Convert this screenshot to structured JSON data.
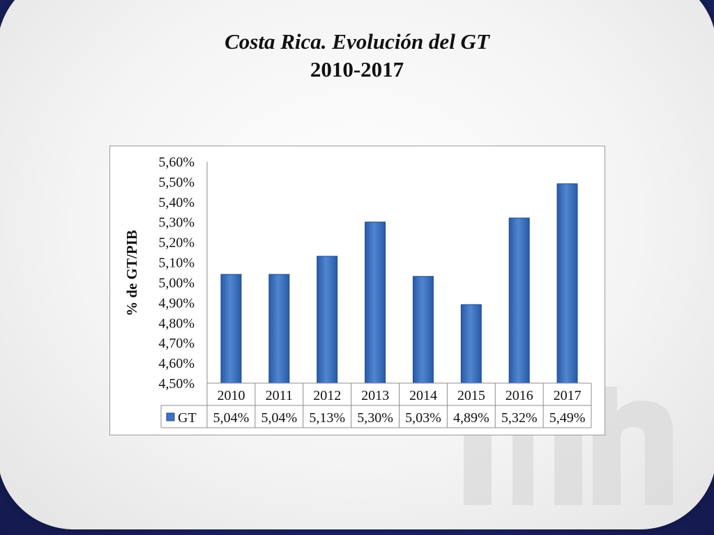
{
  "slide": {
    "title_line1": "Costa Rica. Evolución del GT",
    "title_line2": "2010-2017"
  },
  "chart_data": {
    "type": "bar",
    "categories": [
      "2010",
      "2011",
      "2012",
      "2013",
      "2014",
      "2015",
      "2016",
      "2017"
    ],
    "series": [
      {
        "name": "GT",
        "values": [
          5.04,
          5.04,
          5.13,
          5.3,
          5.03,
          4.89,
          5.32,
          5.49
        ]
      }
    ],
    "value_labels": [
      "5,04%",
      "5,04%",
      "5,13%",
      "5,30%",
      "5,03%",
      "4,89%",
      "5,32%",
      "5,49%"
    ],
    "ylabel": "%  de GT/PIB",
    "ylim": [
      4.5,
      5.6
    ],
    "yticks": [
      4.5,
      4.6,
      4.7,
      4.8,
      4.9,
      5.0,
      5.1,
      5.2,
      5.3,
      5.4,
      5.5,
      5.6
    ],
    "ytick_labels": [
      "4,50%",
      "4,60%",
      "4,70%",
      "4,80%",
      "4,90%",
      "5,00%",
      "5,10%",
      "5,20%",
      "5,30%",
      "5,40%",
      "5,50%",
      "5,60%"
    ],
    "grid": false,
    "legend": "data table",
    "bar_color": "#3d73c0"
  }
}
